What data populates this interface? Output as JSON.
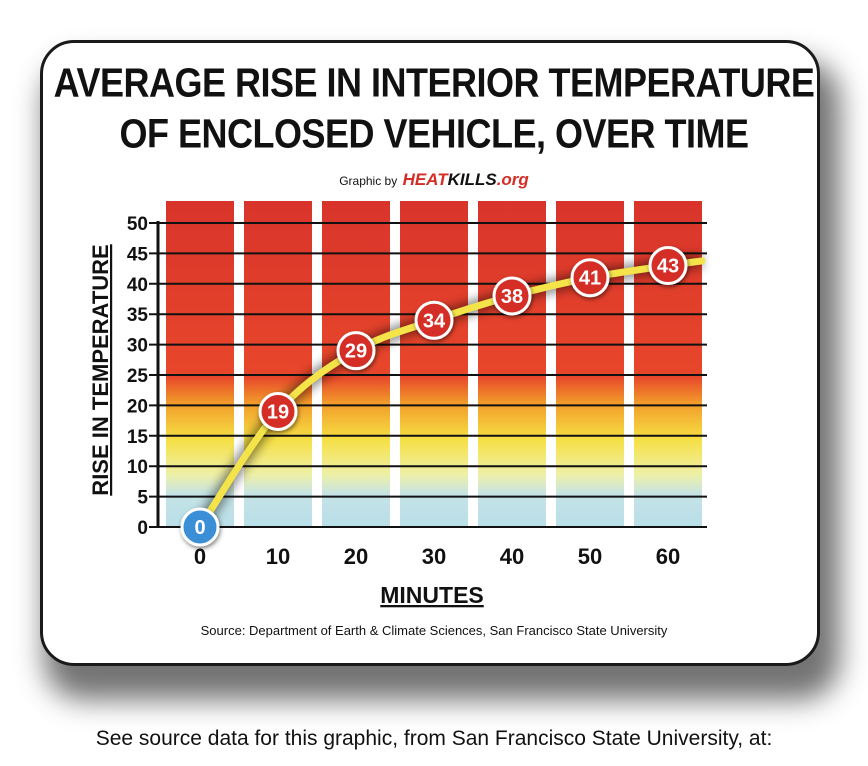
{
  "title_line1": "AVERAGE RISE IN INTERIOR TEMPERATURE",
  "title_line2": "OF ENCLOSED VEHICLE, OVER TIME",
  "credit": {
    "prefix": "Graphic by",
    "brand_heat": "HEAT",
    "brand_kills": "KILLS",
    "brand_suffix": ".org"
  },
  "source": "Source: Department of Earth & Climate Sciences, San Francisco State University",
  "footer": "See source data for this graphic, from San Francisco State University, at:",
  "chart_data": {
    "type": "line",
    "x": [
      0,
      10,
      20,
      30,
      40,
      50,
      60
    ],
    "categories": [
      "0",
      "10",
      "20",
      "30",
      "40",
      "50",
      "60"
    ],
    "values": [
      0,
      19,
      29,
      34,
      38,
      41,
      43
    ],
    "data_labels": [
      "0",
      "19",
      "29",
      "34",
      "38",
      "41",
      "43"
    ],
    "xlabel": "MINUTES",
    "ylabel": "RISE IN TEMPERATURE",
    "ylim": [
      0,
      50
    ],
    "yticks": [
      0,
      5,
      10,
      15,
      20,
      25,
      30,
      35,
      40,
      45,
      50
    ],
    "grid": true,
    "line_color": "#f4e44a",
    "marker_color": "#d42d25",
    "first_marker_color": "#3b8fd6",
    "column_gradient": [
      "#d9342b",
      "#e8472b",
      "#f29c2a",
      "#f6df43",
      "#b9dfe9"
    ]
  }
}
